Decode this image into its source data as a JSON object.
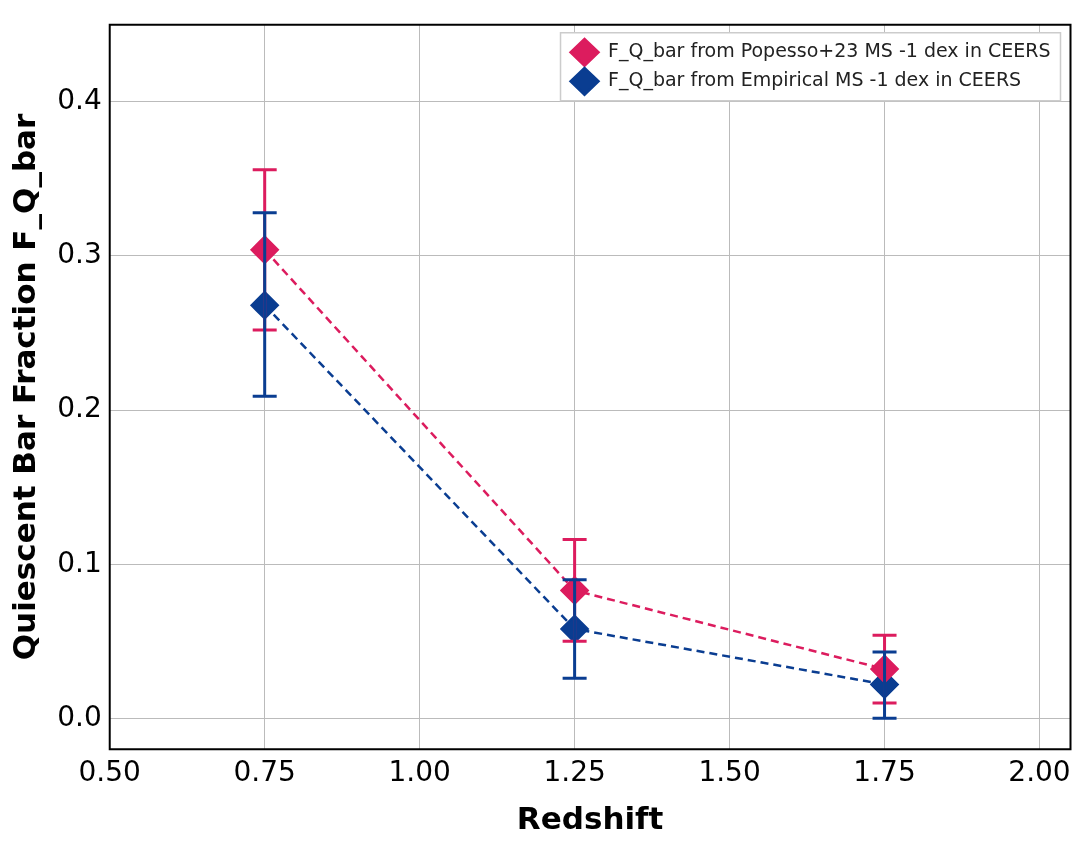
{
  "chart_data": {
    "type": "line",
    "xlabel": "Redshift",
    "ylabel": "Quiescent Bar Fraction F_Q_bar",
    "x": [
      0.75,
      1.25,
      1.75
    ],
    "series": [
      {
        "name": "F_Q_bar from Popesso+23 MS -1 dex in CEERS",
        "color": "#dc1c5e",
        "values": [
          0.304,
          0.083,
          0.032
        ],
        "errors": [
          0.052,
          0.033,
          0.022
        ]
      },
      {
        "name": "F_Q_bar from Empirical MS -1 dex in CEERS",
        "color": "#0a3d91",
        "values": [
          0.268,
          0.058,
          0.022
        ],
        "errors": [
          [
            0.209,
            0.328
          ],
          [
            0.026,
            0.09
          ],
          [
            0.0,
            0.043
          ]
        ]
      }
    ],
    "xlim": [
      0.5,
      2.05
    ],
    "xticks": [
      {
        "value": 0.5,
        "label": "0.50"
      },
      {
        "value": 0.75,
        "label": "0.75"
      },
      {
        "value": 1.0,
        "label": "1.00"
      },
      {
        "value": 1.25,
        "label": "1.25"
      },
      {
        "value": 1.5,
        "label": "1.50"
      },
      {
        "value": 1.75,
        "label": "1.75"
      },
      {
        "value": 2.0,
        "label": "2.00"
      }
    ],
    "ylim": [
      -0.02,
      0.45
    ],
    "yticks": [
      {
        "value": 0,
        "label": "0.0"
      },
      {
        "value": 0.1,
        "label": "0.1"
      },
      {
        "value": 0.2,
        "label": "0.2"
      },
      {
        "value": 0.3,
        "label": "0.3"
      },
      {
        "value": 0.4,
        "label": "0.4"
      }
    ],
    "grid": true,
    "legend": "top right",
    "marker": "diamond",
    "line_style": "dashed"
  }
}
